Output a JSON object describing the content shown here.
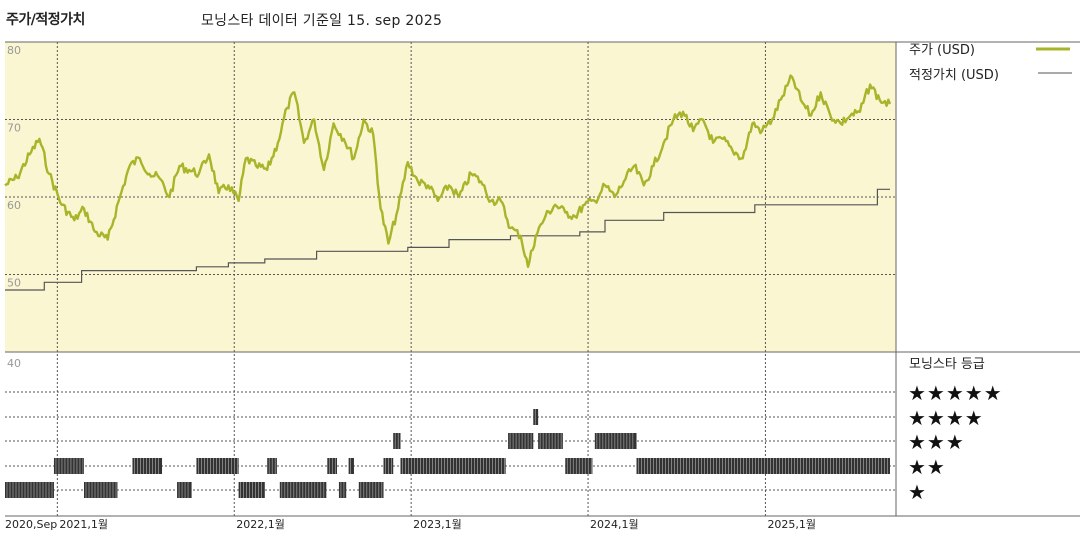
{
  "header": {
    "title": "주가/적정가치",
    "subtitle": "모닝스타 데이터 기준일 15. sep 2025"
  },
  "legend": {
    "price_label": "주가 (USD)",
    "fair_value_label": "적정가치 (USD)",
    "rating_title": "모닝스타 등급",
    "star_rows": [
      "★★★★★",
      "★★★★",
      "★★★",
      "★★",
      "★"
    ]
  },
  "colors": {
    "price_line": "#a8b52a",
    "fair_value_line": "#555555",
    "price_panel_bg": "#faf6d2",
    "rating_bar": "#333333"
  },
  "chart_data": [
    {
      "type": "line",
      "x_axis": {
        "range": [
          "2020-09-15",
          "2025-09-15"
        ],
        "tick_labels": [
          "2020,Sep",
          "2021,1월",
          "2022,1월",
          "2023,1월",
          "2024,1월",
          "2025,1월"
        ],
        "tick_dates": [
          "2020-09-01",
          "2021-01-01",
          "2022-01-01",
          "2023-01-01",
          "2024-01-01",
          "2025-01-01"
        ]
      },
      "ylim": [
        40,
        80
      ],
      "y_ticks": [
        80,
        70,
        60,
        50,
        40
      ],
      "grid": true,
      "legend_position": "right",
      "series": [
        {
          "name": "주가 (USD)",
          "points": [
            [
              "2020-09-15",
              61.5
            ],
            [
              "2020-10-10",
              62.5
            ],
            [
              "2020-11-05",
              65.5
            ],
            [
              "2020-11-25",
              67.5
            ],
            [
              "2020-12-15",
              63.0
            ],
            [
              "2021-01-10",
              59.0
            ],
            [
              "2021-02-05",
              57.0
            ],
            [
              "2021-02-25",
              58.5
            ],
            [
              "2021-03-20",
              55.5
            ],
            [
              "2021-04-15",
              54.5
            ],
            [
              "2021-05-10",
              60.0
            ],
            [
              "2021-05-30",
              64.0
            ],
            [
              "2021-06-20",
              65.0
            ],
            [
              "2021-07-10",
              63.0
            ],
            [
              "2021-07-30",
              62.5
            ],
            [
              "2021-08-20",
              60.0
            ],
            [
              "2021-09-10",
              64.0
            ],
            [
              "2021-09-30",
              63.5
            ],
            [
              "2021-10-20",
              63.0
            ],
            [
              "2021-11-10",
              65.5
            ],
            [
              "2021-11-30",
              60.5
            ],
            [
              "2021-12-20",
              61.5
            ],
            [
              "2022-01-10",
              59.5
            ],
            [
              "2022-01-25",
              65.0
            ],
            [
              "2022-02-15",
              64.0
            ],
            [
              "2022-03-10",
              63.5
            ],
            [
              "2022-04-01",
              67.0
            ],
            [
              "2022-04-20",
              71.5
            ],
            [
              "2022-05-05",
              73.5
            ],
            [
              "2022-05-25",
              67.0
            ],
            [
              "2022-06-15",
              70.0
            ],
            [
              "2022-07-05",
              63.5
            ],
            [
              "2022-07-25",
              69.5
            ],
            [
              "2022-08-15",
              67.5
            ],
            [
              "2022-09-05",
              65.0
            ],
            [
              "2022-09-25",
              70.0
            ],
            [
              "2022-10-15",
              68.0
            ],
            [
              "2022-10-30",
              58.5
            ],
            [
              "2022-11-15",
              54.0
            ],
            [
              "2022-12-05",
              58.5
            ],
            [
              "2022-12-25",
              64.5
            ],
            [
              "2023-01-15",
              62.0
            ],
            [
              "2023-02-05",
              61.5
            ],
            [
              "2023-02-25",
              59.5
            ],
            [
              "2023-03-20",
              61.5
            ],
            [
              "2023-04-10",
              60.0
            ],
            [
              "2023-05-05",
              63.0
            ],
            [
              "2023-05-25",
              62.0
            ],
            [
              "2023-06-15",
              59.5
            ],
            [
              "2023-07-05",
              59.5
            ],
            [
              "2023-07-25",
              56.0
            ],
            [
              "2023-08-15",
              55.0
            ],
            [
              "2023-08-30",
              51.0
            ],
            [
              "2023-09-15",
              55.0
            ],
            [
              "2023-10-05",
              57.5
            ],
            [
              "2023-10-25",
              59.0
            ],
            [
              "2023-11-15",
              58.0
            ],
            [
              "2023-12-05",
              57.5
            ],
            [
              "2023-12-25",
              59.0
            ],
            [
              "2024-01-15",
              59.5
            ],
            [
              "2024-02-05",
              61.5
            ],
            [
              "2024-02-25",
              60.0
            ],
            [
              "2024-03-15",
              62.0
            ],
            [
              "2024-04-05",
              64.0
            ],
            [
              "2024-04-25",
              61.5
            ],
            [
              "2024-05-15",
              64.0
            ],
            [
              "2024-06-05",
              67.0
            ],
            [
              "2024-06-25",
              70.0
            ],
            [
              "2024-07-15",
              71.0
            ],
            [
              "2024-08-05",
              68.5
            ],
            [
              "2024-08-25",
              70.0
            ],
            [
              "2024-09-15",
              67.0
            ],
            [
              "2024-10-05",
              67.5
            ],
            [
              "2024-10-25",
              66.0
            ],
            [
              "2024-11-15",
              65.0
            ],
            [
              "2024-12-05",
              69.5
            ],
            [
              "2024-12-25",
              68.5
            ],
            [
              "2025-01-15",
              70.0
            ],
            [
              "2025-02-05",
              73.0
            ],
            [
              "2025-02-25",
              75.5
            ],
            [
              "2025-03-15",
              72.5
            ],
            [
              "2025-04-05",
              70.5
            ],
            [
              "2025-04-25",
              73.5
            ],
            [
              "2025-05-15",
              70.5
            ],
            [
              "2025-06-05",
              69.5
            ],
            [
              "2025-06-25",
              70.5
            ],
            [
              "2025-07-15",
              71.0
            ],
            [
              "2025-08-05",
              74.5
            ],
            [
              "2025-08-25",
              72.5
            ],
            [
              "2025-09-15",
              72.0
            ]
          ]
        },
        {
          "name": "적정가치 (USD)",
          "step": true,
          "points": [
            [
              "2020-09-15",
              48.0
            ],
            [
              "2020-12-05",
              49.0
            ],
            [
              "2021-02-20",
              50.5
            ],
            [
              "2021-10-15",
              51.0
            ],
            [
              "2021-12-20",
              51.5
            ],
            [
              "2022-03-05",
              52.0
            ],
            [
              "2022-06-20",
              53.0
            ],
            [
              "2022-12-25",
              53.5
            ],
            [
              "2023-03-20",
              54.5
            ],
            [
              "2023-07-25",
              55.0
            ],
            [
              "2023-12-15",
              55.5
            ],
            [
              "2024-02-05",
              57.0
            ],
            [
              "2024-06-05",
              58.0
            ],
            [
              "2024-12-10",
              59.0
            ],
            [
              "2025-08-20",
              61.0
            ],
            [
              "2025-09-15",
              61.0
            ]
          ]
        }
      ]
    },
    {
      "type": "bar",
      "title": "모닝스타 등급",
      "ylim": [
        0,
        5
      ],
      "y_ticks": [
        40
      ],
      "star_segments": [
        {
          "stars": 1,
          "from": "2020-09-15",
          "to": "2020-12-25"
        },
        {
          "stars": 2,
          "from": "2020-12-25",
          "to": "2021-02-25"
        },
        {
          "stars": 1,
          "from": "2021-02-25",
          "to": "2021-05-05"
        },
        {
          "stars": 2,
          "from": "2021-06-05",
          "to": "2021-08-05"
        },
        {
          "stars": 1,
          "from": "2021-09-05",
          "to": "2021-10-05"
        },
        {
          "stars": 2,
          "from": "2021-10-15",
          "to": "2022-01-10"
        },
        {
          "stars": 1,
          "from": "2022-01-10",
          "to": "2022-03-05"
        },
        {
          "stars": 2,
          "from": "2022-03-10",
          "to": "2022-03-30"
        },
        {
          "stars": 1,
          "from": "2022-04-05",
          "to": "2022-07-10"
        },
        {
          "stars": 2,
          "from": "2022-07-12",
          "to": "2022-08-01"
        },
        {
          "stars": 1,
          "from": "2022-08-05",
          "to": "2022-08-20"
        },
        {
          "stars": 2,
          "from": "2022-08-25",
          "to": "2022-09-05"
        },
        {
          "stars": 1,
          "from": "2022-09-15",
          "to": "2022-11-05"
        },
        {
          "stars": 2,
          "from": "2022-11-05",
          "to": "2022-11-25"
        },
        {
          "stars": 3,
          "from": "2022-11-25",
          "to": "2022-12-10"
        },
        {
          "stars": 2,
          "from": "2022-12-10",
          "to": "2023-07-15"
        },
        {
          "stars": 3,
          "from": "2023-07-20",
          "to": "2023-09-10"
        },
        {
          "stars": 4,
          "from": "2023-09-10",
          "to": "2023-09-20"
        },
        {
          "stars": 3,
          "from": "2023-09-20",
          "to": "2023-11-10"
        },
        {
          "stars": 2,
          "from": "2023-11-15",
          "to": "2024-01-10"
        },
        {
          "stars": 3,
          "from": "2024-01-15",
          "to": "2024-04-10"
        },
        {
          "stars": 2,
          "from": "2024-04-10",
          "to": "2025-09-15"
        }
      ]
    }
  ]
}
